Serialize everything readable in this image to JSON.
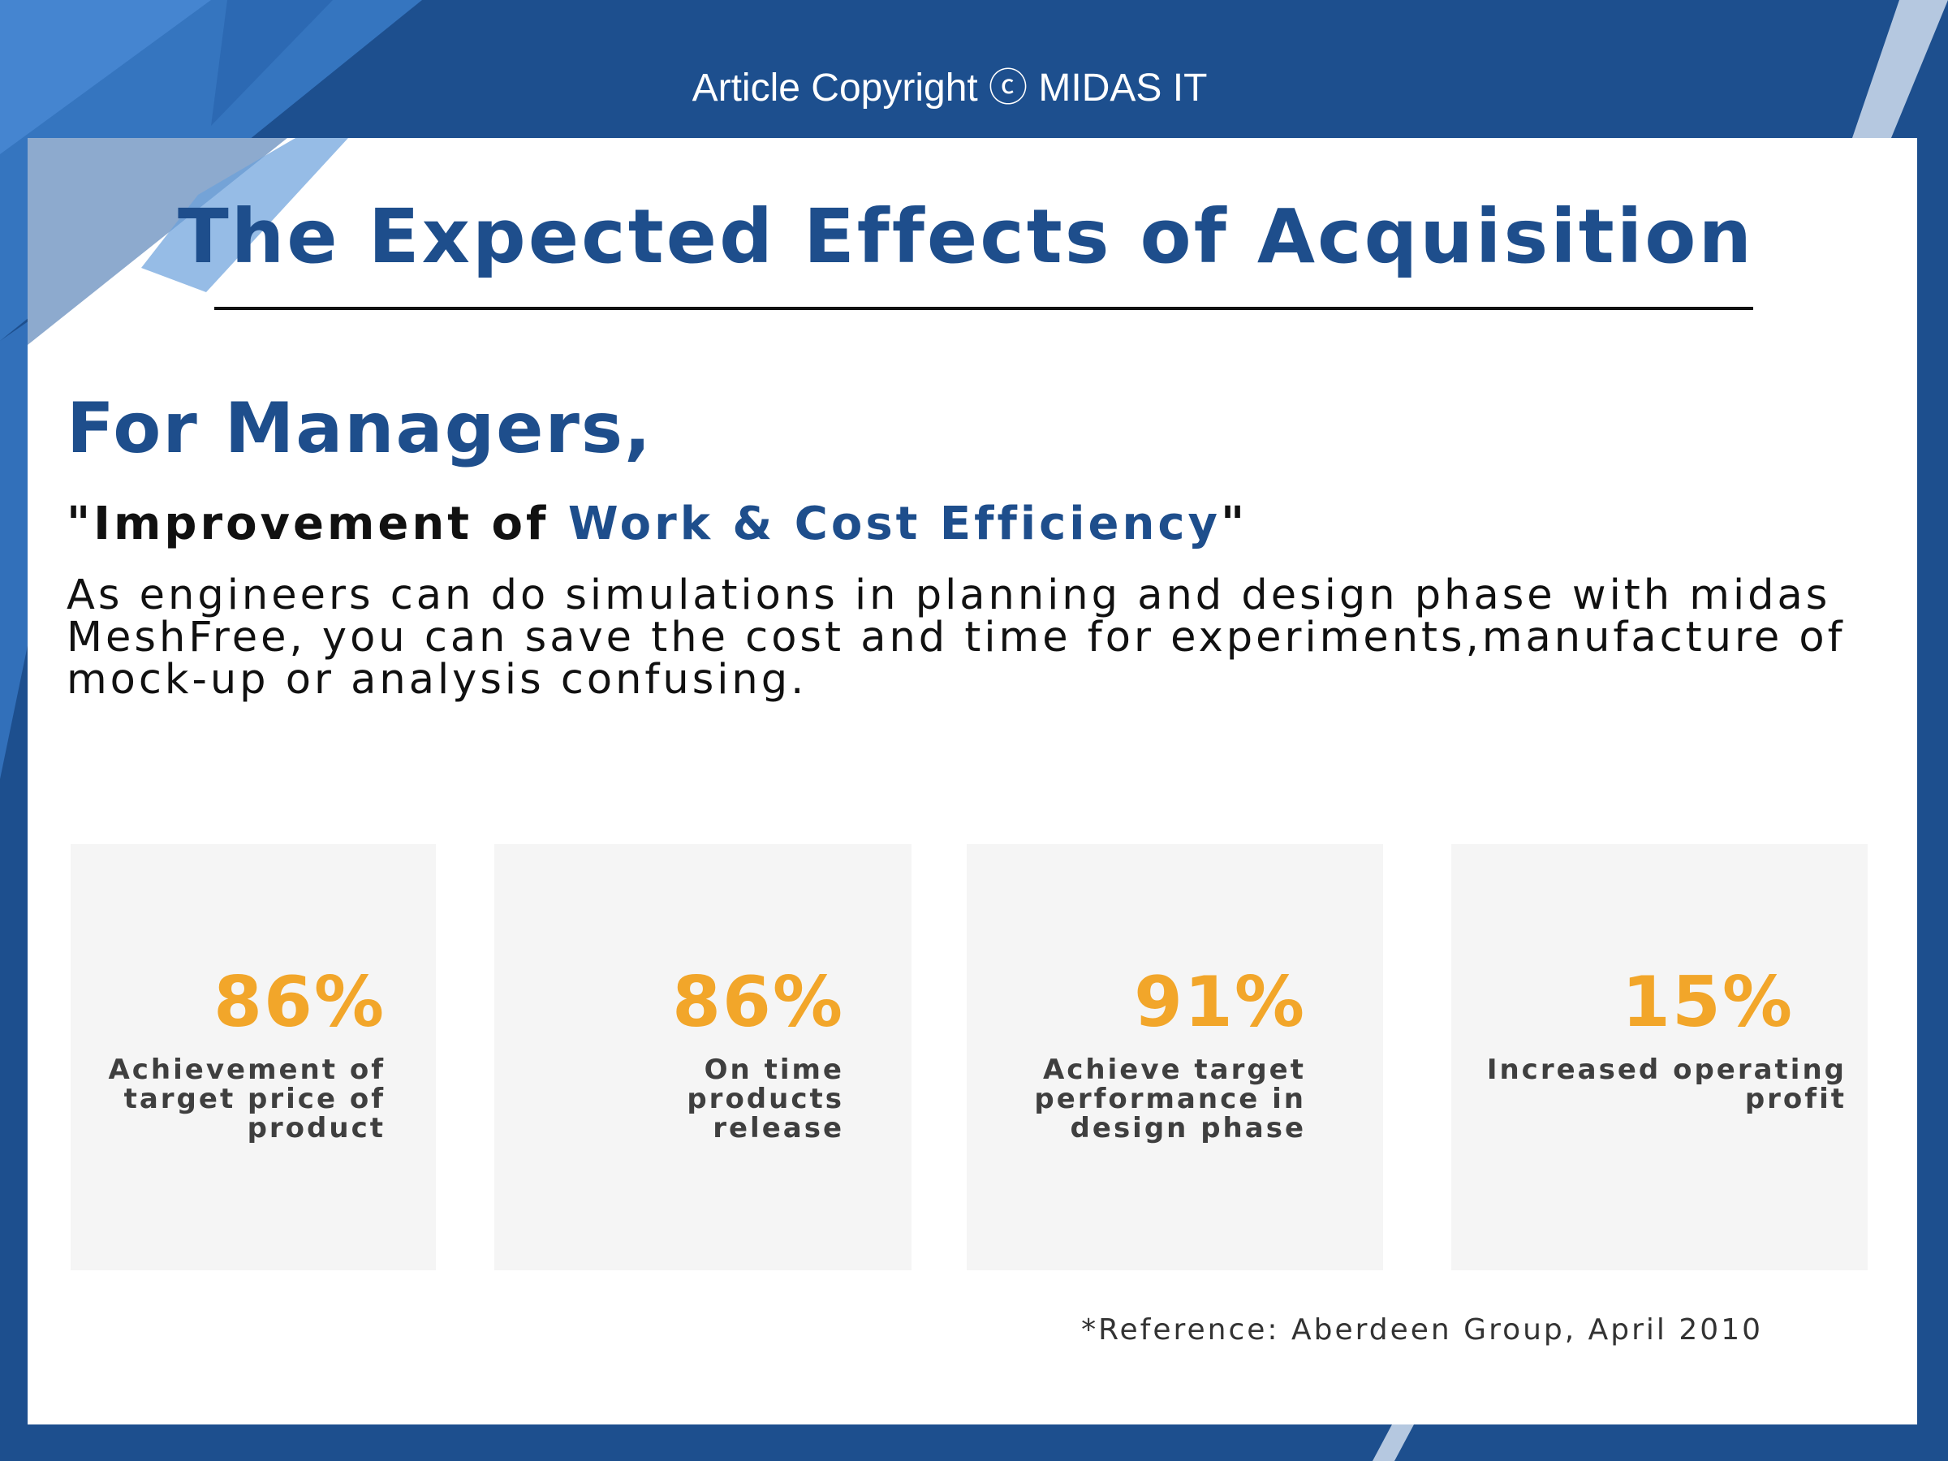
{
  "header": {
    "copyright": "Article Copyright ⓒ MIDAS IT"
  },
  "title": "The Expected Effects of Acquisition",
  "section": {
    "heading": "For Managers,",
    "subheading_prefix": "\"Improvement of ",
    "subheading_highlight": "Work & Cost Efficiency",
    "subheading_suffix": "\"",
    "body": "As engineers can do simulations in planning and design phase with midas MeshFree, you can save the cost and time for experiments,manufacture of mock-up or analysis confusing."
  },
  "stats": [
    {
      "value": "86%",
      "label": "Achievement of target price of product"
    },
    {
      "value": "86%",
      "label": "On time products release"
    },
    {
      "value": "91%",
      "label": "Achieve target performance in design phase"
    },
    {
      "value": "15%",
      "label": "Increased operating profit"
    }
  ],
  "reference": "*Reference: Aberdeen Group, April 2010",
  "colors": {
    "background_blue": "#1d4f8e",
    "title_blue": "#1e4e8c",
    "stat_orange": "#f2a62a",
    "card_white": "#ffffff",
    "stat_box_gray": "#f5f5f5"
  }
}
